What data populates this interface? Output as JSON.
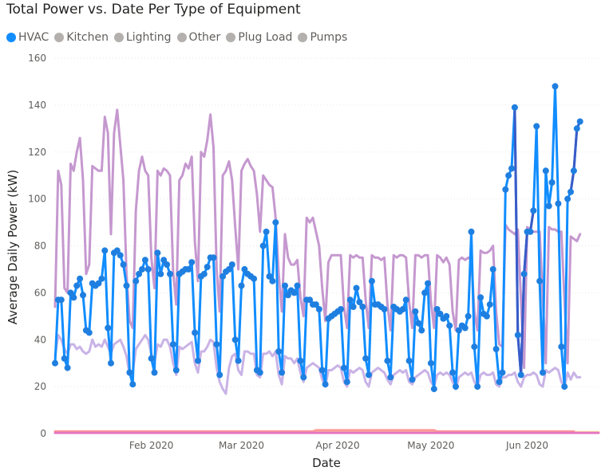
{
  "chart_data": {
    "type": "line",
    "title": "Total Power vs. Date Per Type of Equipment",
    "xlabel": "Date",
    "ylabel": "Average Daily Power (kW)",
    "ylim": [
      0,
      160
    ],
    "yticks": [
      0,
      20,
      40,
      60,
      80,
      100,
      120,
      140,
      160
    ],
    "xlim": [
      "2020-01-01",
      "2020-06-24"
    ],
    "xticks": [
      {
        "date": "2020-02-01",
        "label": "Feb 2020"
      },
      {
        "date": "2020-03-01",
        "label": "Mar 2020"
      },
      {
        "date": "2020-04-01",
        "label": "Apr 2020"
      },
      {
        "date": "2020-05-01",
        "label": "May 2020"
      },
      {
        "date": "2020-06-01",
        "label": "Jun 2020"
      }
    ],
    "grid": true,
    "legend_position": "top-left",
    "x_start": "2020-01-01",
    "series": [
      {
        "name": "HVAC",
        "color": "#118dff",
        "legend_color": "#118dff",
        "markers": true,
        "values": [
          30,
          57,
          57,
          32,
          28,
          60,
          58,
          63,
          66,
          59,
          44,
          43,
          64,
          63,
          64,
          66,
          78,
          45,
          30,
          77,
          78,
          76,
          72,
          63,
          26,
          21,
          65,
          68,
          70,
          74,
          70,
          32,
          26,
          77,
          68,
          74,
          72,
          68,
          38,
          27,
          68,
          69,
          70,
          70,
          73,
          43,
          31,
          67,
          68,
          71,
          75,
          75,
          38,
          25,
          67,
          69,
          70,
          72,
          40,
          31,
          63,
          70,
          68,
          67,
          66,
          27,
          26,
          80,
          86,
          67,
          65,
          90,
          35,
          26,
          63,
          59,
          61,
          60,
          63,
          31,
          24,
          57,
          57,
          55,
          55,
          53,
          27,
          21,
          49,
          50,
          51,
          52,
          53,
          28,
          22,
          57,
          54,
          62,
          56,
          54,
          32,
          25,
          65,
          55,
          55,
          54,
          53,
          31,
          24,
          54,
          53,
          52,
          53,
          57,
          31,
          23,
          52,
          47,
          44,
          60,
          64,
          30,
          19,
          53,
          51,
          49,
          50,
          46,
          26,
          20,
          44,
          46,
          45,
          50,
          86,
          37,
          20,
          58,
          51,
          50,
          55,
          70,
          36,
          22,
          26,
          104,
          110,
          113,
          139,
          42,
          25,
          68,
          86,
          86,
          95,
          131,
          65,
          26,
          112,
          97,
          107,
          148,
          98,
          37,
          20,
          100,
          103,
          112,
          130,
          133
        ],
        "dark_segments": [
          [
            148,
            154
          ],
          [
            166,
            171
          ]
        ]
      },
      {
        "name": "Kitchen",
        "color": "#ffe699",
        "legend_color": "#b3b0ad",
        "markers": false,
        "values": [
          0.6,
          0.6,
          0.6,
          0.6,
          0.6,
          0.6,
          0.6,
          0.6,
          0.6,
          0.6,
          0.6,
          0.6,
          0.6,
          0.6,
          0.6,
          0.6,
          0.6,
          0.6,
          0.6,
          0.6,
          0.6,
          0.6,
          0.6,
          0.6,
          0.6,
          0.6,
          0.6,
          0.6,
          0.6,
          0.6,
          0.6,
          0.6,
          0.6,
          0.6,
          0.6,
          0.6,
          0.6,
          0.6,
          0.6,
          0.6,
          0.6,
          0.6,
          0.6,
          0.6,
          0.6,
          0.6,
          0.6,
          0.6,
          0.6,
          0.6,
          0.6,
          0.6,
          0.6,
          0.6,
          0.6,
          0.6,
          0.6,
          0.6,
          0.6,
          0.6,
          0.6,
          0.6,
          0.6,
          0.6,
          0.6,
          0.6,
          0.6,
          0.6,
          0.6,
          0.6,
          0.6,
          0.6,
          0.6,
          0.6,
          0.6,
          0.6,
          0.6,
          0.6,
          0.6,
          0.6,
          0.6,
          0.6,
          0.6,
          0.6,
          0.6,
          0.6,
          0.6,
          0.6,
          0.6,
          0.6,
          0.6,
          0.6,
          0.6,
          0.6,
          0.6,
          0.6,
          0.6,
          0.6,
          0.6,
          0.6,
          0.6,
          0.6,
          0.6,
          0.6,
          0.6,
          0.6,
          0.6,
          0.6,
          0.6,
          0.6,
          0.6,
          0.6,
          0.6,
          0.6,
          0.6,
          0.6,
          0.6,
          0.6,
          0.6,
          0.6,
          0.6,
          0.6,
          0.6,
          0.6,
          0.6,
          0.6,
          0.6,
          0.6,
          0.6,
          0.6,
          0.6,
          0.6,
          0.6,
          0.6,
          0.6,
          0.6,
          0.6,
          0.6,
          0.6,
          0.6,
          0.6,
          0.6,
          0.6,
          0.6,
          0.6,
          0.6,
          0.6,
          0.6,
          0.6,
          0.6,
          0.6,
          0.6,
          0.6,
          0.6,
          0.6,
          0.6,
          0.6,
          0.6,
          0.6,
          0.6,
          0.6,
          0.6,
          0.6,
          0.6,
          0.6,
          0.6,
          0.6,
          0.6,
          0.6,
          0.6,
          0.6,
          0.6,
          0.6,
          0.6,
          0.6,
          0.6
        ]
      },
      {
        "name": "Lighting",
        "color": "#c9b3e6",
        "legend_color": "#b3b0ad",
        "markers": false,
        "values": [
          33,
          42,
          40,
          36,
          34,
          38,
          38,
          36,
          37,
          35,
          34,
          35,
          40,
          37,
          38,
          37,
          40,
          37,
          34,
          38,
          39,
          40,
          37,
          33,
          25,
          26,
          36,
          38,
          40,
          42,
          40,
          34,
          30,
          38,
          37,
          40,
          40,
          37,
          30,
          25,
          37,
          36,
          37,
          38,
          39,
          30,
          26,
          35,
          35,
          37,
          40,
          39,
          28,
          22,
          19,
          17,
          28,
          33,
          34,
          27,
          25,
          35,
          35,
          34,
          34,
          25,
          24,
          34,
          34,
          35,
          33,
          35,
          25,
          21,
          33,
          32,
          32,
          30,
          32,
          26,
          22,
          28,
          29,
          30,
          29,
          28,
          23,
          20,
          27,
          27,
          28,
          29,
          28,
          22,
          20,
          27,
          26,
          27,
          28,
          27,
          22,
          20,
          26,
          27,
          28,
          27,
          26,
          23,
          21,
          25,
          26,
          27,
          26,
          27,
          22,
          21,
          24,
          25,
          26,
          27,
          26,
          22,
          20,
          25,
          26,
          25,
          26,
          25,
          22,
          19,
          24,
          25,
          26,
          25,
          26,
          22,
          20,
          25,
          26,
          25,
          25,
          26,
          21,
          20,
          24,
          24,
          25,
          25,
          26,
          22,
          20,
          24,
          25,
          25,
          26,
          25,
          21,
          20,
          27,
          26,
          27,
          28,
          27,
          22,
          20,
          26,
          23,
          26,
          24,
          24
        ]
      },
      {
        "name": "Other",
        "color": "#ff9896",
        "legend_color": "#b3b0ad",
        "markers": false,
        "values": [
          0.9,
          0.9,
          0.9,
          0.9,
          0.9,
          0.9,
          0.9,
          0.9,
          0.9,
          0.9,
          0.9,
          0.9,
          0.9,
          0.9,
          0.9,
          0.9,
          0.9,
          0.9,
          0.9,
          0.9,
          0.9,
          0.9,
          0.9,
          0.9,
          0.9,
          0.9,
          0.9,
          0.9,
          0.9,
          0.9,
          0.9,
          0.9,
          0.9,
          0.9,
          0.9,
          0.9,
          0.9,
          0.9,
          0.9,
          0.9,
          0.9,
          0.9,
          0.9,
          0.9,
          0.9,
          0.9,
          0.9,
          0.9,
          0.9,
          0.9,
          0.9,
          0.9,
          0.9,
          0.9,
          0.9,
          0.9,
          0.9,
          0.9,
          0.9,
          0.9,
          0.9,
          0.9,
          0.9,
          0.9,
          0.9,
          0.9,
          0.9,
          0.9,
          0.9,
          0.9,
          0.9,
          0.9,
          0.9,
          0.9,
          0.9,
          0.9,
          0.9,
          0.9,
          0.9,
          0.9,
          0.9,
          0.9,
          0.9,
          0.9,
          1.4,
          1.4,
          1.4,
          1.4,
          1.4,
          1.4,
          1.4,
          1.4,
          1.4,
          1.4,
          1.4,
          1.4,
          1.4,
          1.4,
          1.4,
          1.4,
          1.4,
          1.4,
          1.4,
          1.4,
          1.4,
          1.4,
          1.4,
          1.4,
          1.4,
          1.4,
          1.4,
          1.4,
          1.4,
          1.4,
          1.4,
          1.4,
          1.4,
          1.4,
          1.4,
          1.4,
          1.4,
          1.4,
          1.4,
          0.9,
          0.9,
          0.9,
          0.9,
          0.9,
          0.9,
          0.9,
          0.9,
          0.9,
          0.9,
          0.9,
          0.9,
          0.9,
          0.9,
          0.9,
          0.9,
          0.9,
          0.9,
          0.9,
          0.9,
          0.9,
          0.9,
          0.9,
          0.9,
          0.9,
          0.9,
          0.9,
          0.9,
          0.9,
          0.9,
          0.9,
          0.9,
          0.9,
          0.9,
          0.9,
          0.9,
          0.9,
          0.9,
          0.9,
          0.9,
          0.9,
          0.9,
          0.9,
          0.9,
          0.9
        ]
      },
      {
        "name": "Plug Load",
        "color": "#e377c2",
        "legend_color": "#b3b0ad",
        "markers": false,
        "values": [
          0.3,
          0.3,
          0.3,
          0.3,
          0.3,
          0.3,
          0.3,
          0.3,
          0.3,
          0.3,
          0.3,
          0.3,
          0.3,
          0.3,
          0.3,
          0.3,
          0.3,
          0.3,
          0.3,
          0.3,
          0.3,
          0.3,
          0.3,
          0.3,
          0.3,
          0.3,
          0.3,
          0.3,
          0.3,
          0.3,
          0.3,
          0.3,
          0.3,
          0.3,
          0.3,
          0.3,
          0.3,
          0.3,
          0.3,
          0.3,
          0.3,
          0.3,
          0.3,
          0.3,
          0.3,
          0.3,
          0.3,
          0.3,
          0.3,
          0.3,
          0.3,
          0.3,
          0.3,
          0.3,
          0.3,
          0.3,
          0.3,
          0.3,
          0.3,
          0.3,
          0.3,
          0.3,
          0.3,
          0.3,
          0.3,
          0.3,
          0.3,
          0.3,
          0.3,
          0.3,
          0.3,
          0.3,
          0.3,
          0.3,
          0.3,
          0.3,
          0.3,
          0.3,
          0.3,
          0.3,
          0.3,
          0.3,
          0.3,
          0.3,
          0.3,
          0.3,
          0.3,
          0.3,
          0.3,
          0.3,
          0.3,
          0.3,
          0.3,
          0.3,
          0.3,
          0.3,
          0.3,
          0.3,
          0.3,
          0.3,
          0.3,
          0.3,
          0.3,
          0.3,
          0.3,
          0.3,
          0.3,
          0.3,
          0.3,
          0.3,
          0.3,
          0.3,
          0.3,
          0.3,
          0.3,
          0.3,
          0.3,
          0.3,
          0.3,
          0.3,
          0.3,
          0.3,
          0.3,
          0.3,
          0.3,
          0.3,
          0.3,
          0.3,
          0.3,
          0.3,
          0.3,
          0.3,
          0.3,
          0.3,
          0.3,
          0.3,
          0.3,
          0.3,
          0.3,
          0.3,
          0.3,
          0.3,
          0.3,
          0.3,
          0.3,
          0.3,
          0.3,
          0.3,
          0.3,
          0.3,
          0.3,
          0.3,
          0.3,
          0.3,
          0.3,
          0.3,
          0.3,
          0.3,
          0.3,
          0.3,
          0.3,
          0.3,
          0.3,
          0.3,
          0.3,
          0.3,
          0.3,
          0.3,
          0.3,
          0.3,
          0.3,
          0.3,
          0.3,
          0.3,
          0.3,
          0.3
        ]
      },
      {
        "name": "Pumps",
        "color": "#c598cf",
        "legend_color": "#b3b0ad",
        "markers": false,
        "values": [
          54,
          112,
          106,
          62,
          60,
          115,
          112,
          120,
          126,
          108,
          68,
          72,
          114,
          113,
          112,
          112,
          135,
          128,
          85,
          128,
          138,
          123,
          108,
          68,
          48,
          45,
          95,
          112,
          118,
          112,
          110,
          75,
          62,
          112,
          110,
          113,
          112,
          110,
          69,
          55,
          108,
          110,
          115,
          113,
          118,
          82,
          65,
          120,
          118,
          125,
          136,
          122,
          70,
          52,
          110,
          112,
          116,
          108,
          88,
          70,
          112,
          115,
          117,
          114,
          112,
          102,
          86,
          110,
          108,
          106,
          105,
          92,
          68,
          52,
          85,
          75,
          72,
          72,
          74,
          58,
          50,
          92,
          90,
          92,
          86,
          80,
          62,
          48,
          73,
          76,
          76,
          76,
          76,
          54,
          45,
          76,
          75,
          76,
          75,
          75,
          57,
          45,
          76,
          75,
          75,
          74,
          75,
          55,
          44,
          76,
          75,
          76,
          76,
          75,
          56,
          45,
          76,
          76,
          75,
          76,
          76,
          56,
          45,
          76,
          75,
          73,
          75,
          72,
          52,
          44,
          74,
          75,
          74,
          75,
          74,
          52,
          44,
          78,
          77,
          77,
          78,
          80,
          52,
          38,
          37,
          89,
          87,
          86,
          85,
          87,
          57,
          28,
          88,
          87,
          86,
          86,
          86,
          58,
          30,
          88,
          87,
          87,
          86,
          86,
          57,
          30,
          84,
          83,
          82,
          85
        ]
      }
    ]
  }
}
